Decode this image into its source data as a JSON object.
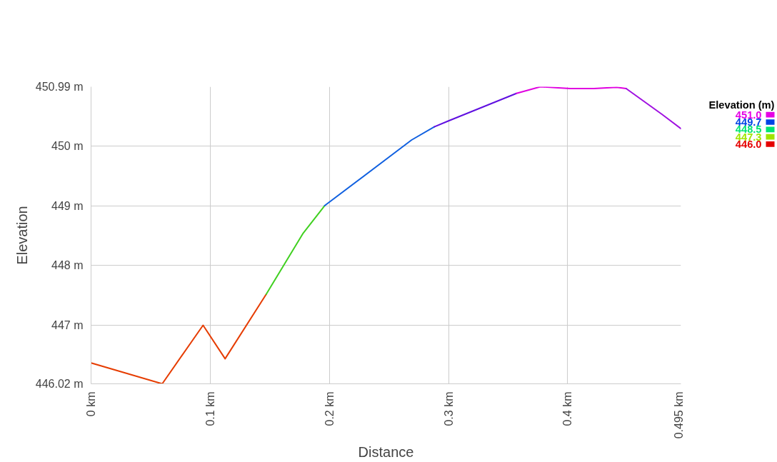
{
  "chart_data": {
    "type": "line",
    "xlabel": "Distance",
    "ylabel": "Elevation",
    "clabel": "Elevation (m)",
    "series": [
      {
        "color": "#e63c00",
        "x": [
          0,
          0.0597,
          0.094,
          0.1125,
          0.147
        ],
        "values": [
          446.37,
          446.02,
          447.0,
          446.44,
          447.52
        ]
      },
      {
        "color": "#40d020",
        "x": [
          0.147,
          0.178,
          0.196
        ],
        "values": [
          447.52,
          448.54,
          449.0
        ]
      },
      {
        "color": "#1060e0",
        "x": [
          0.196,
          0.269,
          0.288
        ],
        "values": [
          449.0,
          450.1,
          450.32
        ]
      },
      {
        "color": "#6010e0",
        "x": [
          0.288,
          0.3,
          0.357
        ],
        "values": [
          450.32,
          450.42,
          450.88
        ]
      },
      {
        "color": "#e000e0",
        "x": [
          0.357,
          0.377,
          0.402,
          0.422,
          0.441,
          0.449
        ],
        "values": [
          450.88,
          450.99,
          450.96,
          450.96,
          450.98,
          450.96
        ]
      },
      {
        "color": "#a010e0",
        "x": [
          0.449,
          0.479,
          0.495
        ],
        "values": [
          450.96,
          450.53,
          450.29
        ]
      }
    ],
    "clim": [
      446.0,
      451.0
    ],
    "cticks": [
      {
        "value": 451.0,
        "label": "451.0"
      },
      {
        "value": 449.7,
        "label": "449.7"
      },
      {
        "value": 448.5,
        "label": "448.5"
      },
      {
        "value": 447.3,
        "label": "447.3"
      },
      {
        "value": 446.0,
        "label": "446.0"
      }
    ],
    "xlim": [
      0,
      0.495
    ],
    "ylim": [
      446.02,
      450.99
    ],
    "xticks": [
      {
        "value": 0,
        "label": "0 km"
      },
      {
        "value": 0.1,
        "label": "0.1 km"
      },
      {
        "value": 0.2,
        "label": "0.2 km"
      },
      {
        "value": 0.3,
        "label": "0.3 km"
      },
      {
        "value": 0.4,
        "label": "0.4 km"
      },
      {
        "value": 0.495,
        "label": "0.495 km"
      }
    ],
    "yticks": [
      {
        "value": 446.02,
        "label": "446.02 m"
      },
      {
        "value": 447,
        "label": "447 m"
      },
      {
        "value": 448,
        "label": "448 m"
      },
      {
        "value": 449,
        "label": "449 m"
      },
      {
        "value": 450,
        "label": "450 m"
      },
      {
        "value": 450.99,
        "label": "450.99 m"
      }
    ],
    "grid": true,
    "line_style": "solid"
  }
}
